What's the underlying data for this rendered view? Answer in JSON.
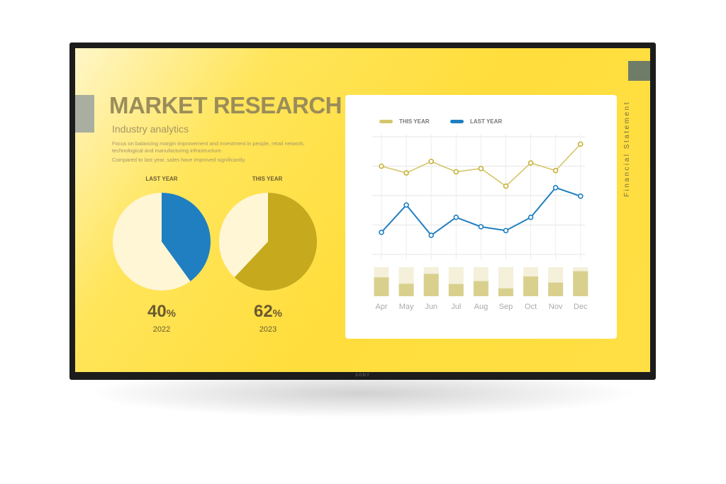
{
  "device": {
    "brand": "SONY"
  },
  "slide": {
    "title": "MARKET RESEARCH",
    "subtitle": "Industry analytics",
    "description": "Focus on balancing margin improvement and investment in people, retail network, technological and manufacturing infrastructure.",
    "note": "Compared to last year, sales have improved significantly.",
    "side_label": "Financial Statement",
    "colors": {
      "background": "#FFDD3C",
      "this_year": "#C6A91C",
      "last_year": "#1F7FC0",
      "pie_rest": "#FFF6D6"
    },
    "pies": [
      {
        "label": "LAST YEAR",
        "percent": 40,
        "value": "40",
        "unit": "%",
        "year": "2022",
        "color": "#1F7FC0"
      },
      {
        "label": "THIS YEAR",
        "percent": 62,
        "value": "62",
        "unit": "%",
        "year": "2023",
        "color": "#C6A91C"
      }
    ]
  },
  "chart_data": {
    "type": "line",
    "categories": [
      "Apr",
      "May",
      "Jun",
      "Jul",
      "Aug",
      "Sep",
      "Oct",
      "Nov",
      "Dec"
    ],
    "ylim": [
      0,
      4
    ],
    "grid": true,
    "legend": "top-left",
    "series": [
      {
        "name": "THIS YEAR",
        "color": "#D4C66A",
        "values": [
          3.0,
          2.77,
          3.16,
          2.81,
          2.92,
          2.32,
          3.11,
          2.85,
          3.75
        ]
      },
      {
        "name": "LAST YEAR",
        "color": "#1F7FC0",
        "values": [
          0.75,
          1.68,
          0.65,
          1.26,
          0.94,
          0.81,
          1.26,
          2.27,
          1.98
        ]
      }
    ],
    "bars": {
      "type": "bar",
      "fractions": [
        0.65,
        0.43,
        0.77,
        0.42,
        0.52,
        0.27,
        0.68,
        0.47,
        0.86
      ]
    }
  }
}
